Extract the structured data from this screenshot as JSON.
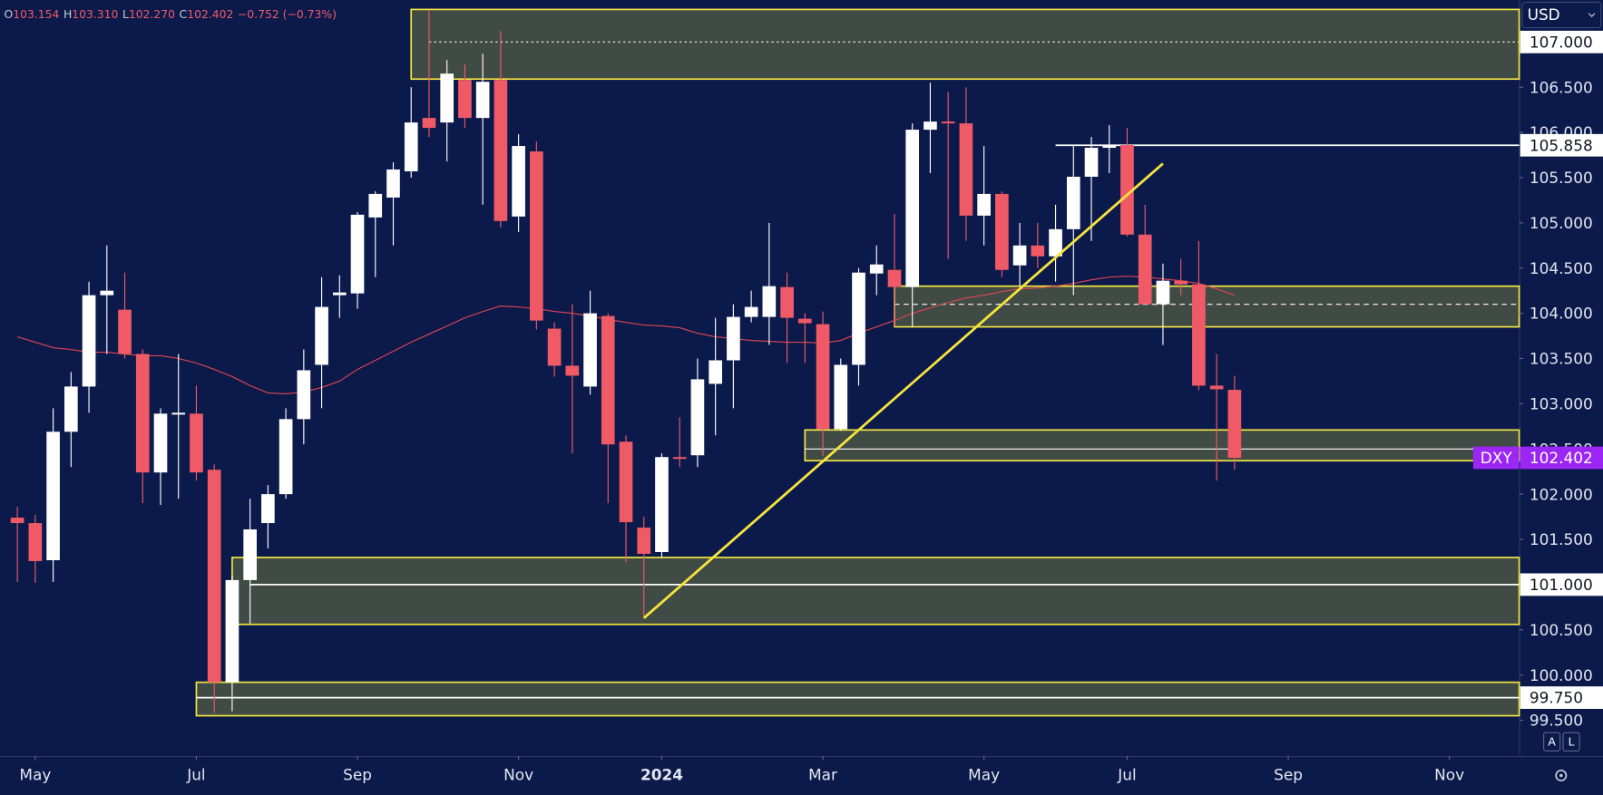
{
  "chart_data": {
    "type": "candlestick",
    "symbol": "DXY",
    "currency": "USD",
    "legend": [
      {
        "key": "O",
        "value": "103.154"
      },
      {
        "key": "H",
        "value": "103.310"
      },
      {
        "key": "L",
        "value": "102.270"
      },
      {
        "key": "C",
        "value": "102.402"
      }
    ],
    "change": "−0.752 (−0.73%)",
    "colors": {
      "up": "#ffffff",
      "down": "#f05a66",
      "ma": "#e0454f",
      "zone_fill": "#414b45",
      "zone_stroke": "#f2e640",
      "trend": "#f5e43c",
      "last": "#9c27f5"
    },
    "xlim": [
      -0.97,
      83.9
    ],
    "ylim": [
      99.104,
      107.463
    ],
    "xticks": [
      {
        "value": 1,
        "label": "May"
      },
      {
        "value": 10,
        "label": "Jul"
      },
      {
        "value": 19,
        "label": "Sep"
      },
      {
        "value": 28,
        "label": "Nov"
      },
      {
        "value": 36,
        "label": "2024"
      },
      {
        "value": 45,
        "label": "Mar"
      },
      {
        "value": 54,
        "label": "May"
      },
      {
        "value": 62,
        "label": "Jul"
      },
      {
        "value": 71,
        "label": "Sep"
      },
      {
        "value": 80,
        "label": "Nov"
      }
    ],
    "yticks": [
      {
        "value": 99.5,
        "label": "99.500"
      },
      {
        "value": 100,
        "label": "100.000"
      },
      {
        "value": 100.5,
        "label": "100.500"
      },
      {
        "value": 101.5,
        "label": "101.500"
      },
      {
        "value": 102,
        "label": "102.000"
      },
      {
        "value": 102.5,
        "label": "102.500"
      },
      {
        "value": 103,
        "label": "103.000"
      },
      {
        "value": 103.5,
        "label": "103.500"
      },
      {
        "value": 104,
        "label": "104.000"
      },
      {
        "value": 104.5,
        "label": "104.500"
      },
      {
        "value": 105,
        "label": "105.000"
      },
      {
        "value": 105.5,
        "label": "105.500"
      },
      {
        "value": 106,
        "label": "106.000"
      },
      {
        "value": 106.5,
        "label": "106.500"
      }
    ],
    "candles": [
      [
        101.74,
        101.86,
        101.03,
        101.68
      ],
      [
        101.68,
        101.77,
        101.02,
        101.26
      ],
      [
        101.27,
        102.95,
        101.03,
        102.69
      ],
      [
        102.69,
        103.35,
        102.3,
        103.19
      ],
      [
        103.19,
        104.35,
        102.9,
        104.2
      ],
      [
        104.2,
        104.75,
        103.55,
        104.25
      ],
      [
        104.04,
        104.45,
        103.5,
        103.55
      ],
      [
        103.55,
        103.6,
        101.9,
        102.24
      ],
      [
        102.24,
        102.95,
        101.88,
        102.89
      ],
      [
        102.88,
        103.55,
        101.95,
        102.9
      ],
      [
        102.89,
        103.2,
        102.15,
        102.24
      ],
      [
        102.27,
        102.33,
        99.58,
        99.92
      ],
      [
        99.92,
        101.1,
        99.6,
        101.05
      ],
      [
        101.05,
        101.95,
        100.57,
        101.61
      ],
      [
        101.68,
        102.1,
        101.4,
        102.0
      ],
      [
        102.0,
        102.95,
        101.95,
        102.83
      ],
      [
        102.83,
        103.6,
        102.55,
        103.37
      ],
      [
        103.43,
        104.4,
        102.95,
        104.07
      ],
      [
        104.2,
        104.42,
        103.95,
        104.23
      ],
      [
        104.22,
        105.12,
        104.05,
        105.09
      ],
      [
        105.06,
        105.35,
        104.4,
        105.32
      ],
      [
        105.28,
        105.67,
        104.75,
        105.59
      ],
      [
        105.57,
        106.5,
        105.5,
        106.11
      ],
      [
        106.16,
        107.35,
        105.95,
        106.05
      ],
      [
        106.11,
        106.8,
        105.68,
        106.65
      ],
      [
        106.58,
        106.75,
        106.05,
        106.16
      ],
      [
        106.16,
        106.87,
        105.2,
        106.56
      ],
      [
        106.58,
        107.12,
        104.95,
        105.02
      ],
      [
        105.07,
        105.98,
        104.9,
        105.85
      ],
      [
        105.79,
        105.9,
        103.82,
        103.92
      ],
      [
        103.83,
        103.9,
        103.3,
        103.42
      ],
      [
        103.42,
        104.1,
        102.45,
        103.31
      ],
      [
        103.19,
        104.25,
        103.1,
        104.0
      ],
      [
        103.97,
        104.0,
        101.9,
        102.55
      ],
      [
        102.58,
        102.65,
        101.25,
        101.69
      ],
      [
        101.63,
        101.75,
        100.63,
        101.34
      ],
      [
        101.36,
        102.45,
        101.3,
        102.41
      ],
      [
        102.41,
        102.85,
        102.3,
        102.39
      ],
      [
        102.43,
        103.5,
        102.3,
        103.27
      ],
      [
        103.22,
        103.95,
        102.65,
        103.48
      ],
      [
        103.48,
        104.1,
        102.95,
        103.96
      ],
      [
        103.96,
        104.25,
        103.9,
        104.07
      ],
      [
        103.96,
        105.0,
        103.65,
        104.3
      ],
      [
        104.29,
        104.45,
        103.45,
        103.95
      ],
      [
        103.94,
        104.0,
        103.45,
        103.89
      ],
      [
        103.88,
        104.02,
        102.42,
        102.72
      ],
      [
        102.72,
        103.5,
        102.7,
        103.43
      ],
      [
        103.43,
        104.5,
        103.2,
        104.45
      ],
      [
        104.44,
        104.75,
        104.2,
        104.54
      ],
      [
        104.48,
        105.1,
        103.85,
        104.29
      ],
      [
        104.29,
        106.1,
        103.85,
        106.03
      ],
      [
        106.03,
        106.55,
        105.55,
        106.12
      ],
      [
        106.12,
        106.45,
        104.6,
        106.1
      ],
      [
        106.1,
        106.5,
        104.8,
        105.08
      ],
      [
        105.08,
        105.85,
        104.75,
        105.32
      ],
      [
        105.32,
        105.35,
        104.4,
        104.48
      ],
      [
        104.53,
        105.0,
        104.3,
        104.75
      ],
      [
        104.75,
        105.0,
        104.5,
        104.63
      ],
      [
        104.63,
        105.2,
        104.35,
        104.93
      ],
      [
        104.93,
        105.85,
        104.2,
        105.51
      ],
      [
        105.51,
        105.95,
        104.8,
        105.83
      ],
      [
        105.83,
        106.08,
        105.55,
        105.86
      ],
      [
        105.86,
        106.05,
        104.85,
        104.87
      ],
      [
        104.87,
        105.2,
        104.1,
        104.1
      ],
      [
        104.1,
        104.55,
        103.65,
        104.36
      ],
      [
        104.36,
        104.6,
        104.2,
        104.32
      ],
      [
        104.32,
        104.8,
        103.15,
        103.2
      ],
      [
        103.2,
        103.55,
        102.15,
        103.16
      ],
      [
        103.154,
        103.31,
        102.27,
        102.402
      ]
    ],
    "ma": [
      103.74,
      103.68,
      103.62,
      103.6,
      103.57,
      103.57,
      103.55,
      103.53,
      103.53,
      103.5,
      103.45,
      103.38,
      103.3,
      103.2,
      103.12,
      103.11,
      103.13,
      103.18,
      103.25,
      103.38,
      103.48,
      103.58,
      103.68,
      103.77,
      103.86,
      103.95,
      104.02,
      104.08,
      104.07,
      104.05,
      104.02,
      104.0,
      103.97,
      103.93,
      103.9,
      103.87,
      103.86,
      103.84,
      103.78,
      103.74,
      103.72,
      103.7,
      103.69,
      103.68,
      103.68,
      103.67,
      103.7,
      103.78,
      103.85,
      103.92,
      104.0,
      104.06,
      104.12,
      104.17,
      104.2,
      104.24,
      104.27,
      104.28,
      104.3,
      104.33,
      104.37,
      104.4,
      104.41,
      104.4,
      104.38,
      104.36,
      104.33,
      104.27,
      104.2
    ],
    "zones": [
      {
        "start": 22,
        "low": 106.59,
        "high": 107.36
      },
      {
        "start": 49,
        "low": 103.85,
        "high": 104.3
      },
      {
        "start": 44,
        "low": 102.37,
        "high": 102.71
      },
      {
        "start": 12,
        "low": 100.56,
        "high": 101.3
      },
      {
        "start": 10,
        "low": 99.55,
        "high": 99.92
      }
    ],
    "levels": [
      {
        "value": 107,
        "label": "107.000",
        "start": 23,
        "style": "dotted"
      },
      {
        "value": 105.858,
        "label": "105.858",
        "start": 58,
        "style": "solid"
      },
      {
        "value": 101,
        "label": "101.000",
        "start": 13,
        "style": "solid"
      },
      {
        "value": 99.75,
        "label": "99.750",
        "start": 10,
        "style": "solid"
      }
    ],
    "lines": [
      {
        "value": 104.1,
        "start": 49,
        "style": "dashed"
      },
      {
        "value": 102.5,
        "start": 44,
        "style": "solid"
      }
    ],
    "trendline": {
      "x": [
        35,
        64
      ],
      "y": [
        100.63,
        105.656
      ]
    },
    "last": {
      "value": 102.402,
      "label": "102.402"
    },
    "scale_buttons": [
      "A",
      "L"
    ]
  }
}
